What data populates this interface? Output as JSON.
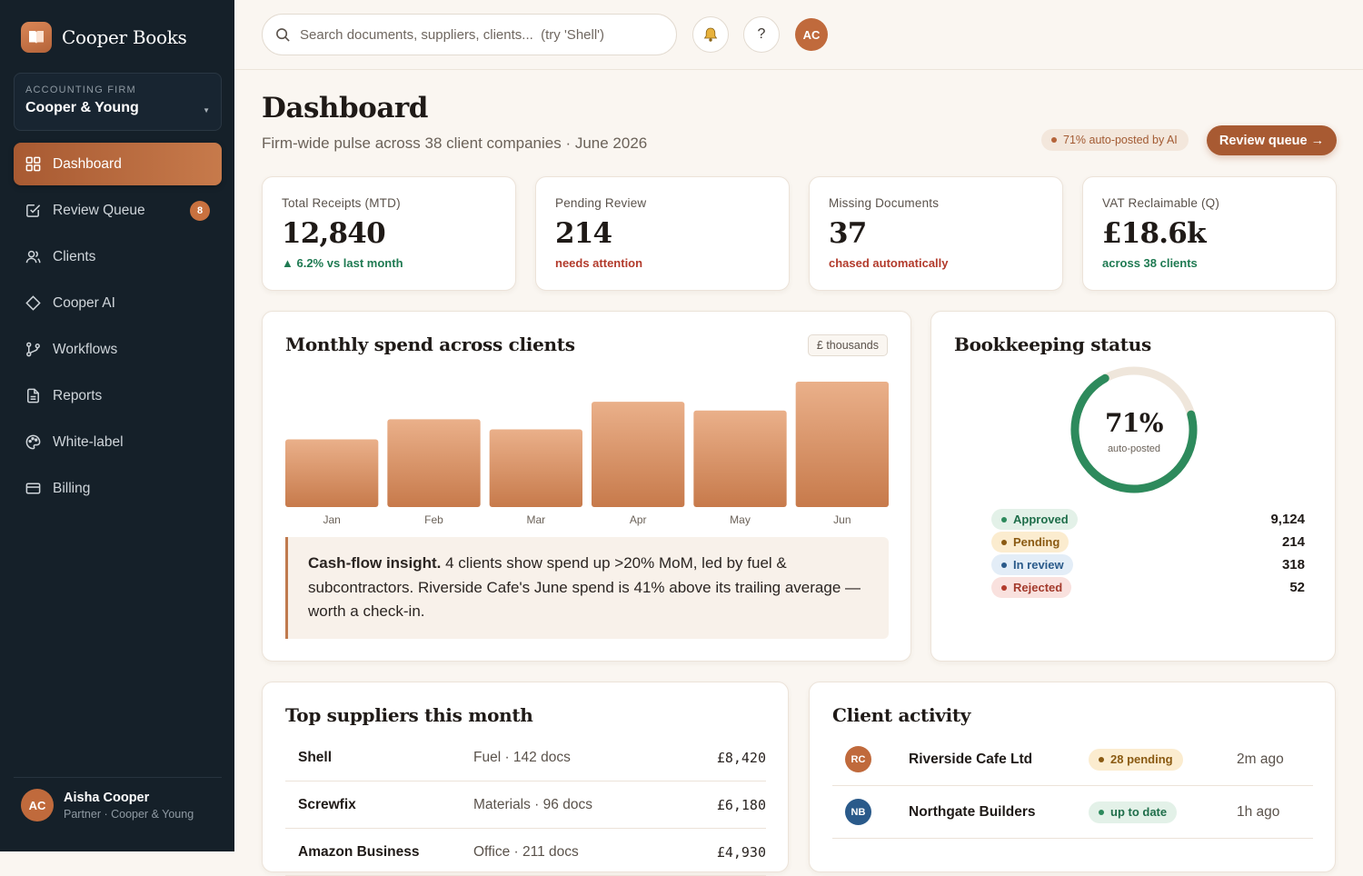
{
  "app": {
    "name": "Cooper Books"
  },
  "firm": {
    "caption": "ACCOUNTING FIRM",
    "name": "Cooper & Young"
  },
  "nav": {
    "items": [
      {
        "label": "Dashboard",
        "icon": "grid-icon",
        "active": true
      },
      {
        "label": "Review Queue",
        "icon": "check-square-icon",
        "badge": "8"
      },
      {
        "label": "Clients",
        "icon": "users-icon"
      },
      {
        "label": "Cooper AI",
        "icon": "diamond-icon"
      },
      {
        "label": "Workflows",
        "icon": "git-branch-icon"
      },
      {
        "label": "Reports",
        "icon": "document-icon"
      },
      {
        "label": "White-label",
        "icon": "palette-icon"
      },
      {
        "label": "Billing",
        "icon": "credit-card-icon"
      }
    ]
  },
  "user": {
    "initials": "AC",
    "name": "Aisha Cooper",
    "role": "Partner · Cooper & Young"
  },
  "search": {
    "placeholder": "Search documents, suppliers, clients...  (try 'Shell')"
  },
  "topbar": {
    "help_label": "?",
    "avatar_initials": "AC"
  },
  "header": {
    "title": "Dashboard",
    "subtitle": "Firm-wide pulse across 38 client companies · June 2026",
    "ai_pill": "71% auto-posted by AI",
    "review_button": "Review queue →"
  },
  "kpis": [
    {
      "label": "Total Receipts (MTD)",
      "value": "12,840",
      "note": "▲ 6.2% vs last month"
    },
    {
      "label": "Pending Review",
      "value": "214",
      "note": "needs attention"
    },
    {
      "label": "Missing Documents",
      "value": "37",
      "note": "chased automatically"
    },
    {
      "label": "VAT Reclaimable (Q)",
      "value": "£18.6k",
      "note": "across 38 clients"
    }
  ],
  "spend": {
    "title": "Monthly spend across clients",
    "unit": "£ thousands",
    "insight_bold": "Cash-flow insight.",
    "insight_text": " 4 clients show spend up >20% MoM, led by fuel & subcontractors. Riverside Cafe's June spend is 41% above its trailing average — worth a check-in."
  },
  "chart_data": {
    "type": "bar",
    "categories": [
      "Jan",
      "Feb",
      "Mar",
      "Apr",
      "May",
      "Jun"
    ],
    "values": [
      54,
      70,
      62,
      84,
      77,
      100
    ],
    "ylim": [
      0,
      100
    ],
    "grid": false,
    "color": "#c77a4b"
  },
  "bookkeeping": {
    "title": "Bookkeeping status",
    "percent": "71%",
    "percent_value": 0.71,
    "caption": "auto-posted",
    "statuses": [
      {
        "label": "Approved",
        "value": "9,124",
        "bg": "#e3f1e8",
        "fg": "#1f6e4a",
        "dot": "#2d8a5c"
      },
      {
        "label": "Pending",
        "value": "214",
        "bg": "#fbeccf",
        "fg": "#8a5a12",
        "dot": "#8a5a12"
      },
      {
        "label": "In review",
        "value": "318",
        "bg": "#e3edf7",
        "fg": "#2a5a8a",
        "dot": "#2a5a8a"
      },
      {
        "label": "Rejected",
        "value": "52",
        "bg": "#f9e1de",
        "fg": "#a33a2c",
        "dot": "#b23a2b"
      }
    ]
  },
  "suppliers": {
    "title": "Top suppliers this month",
    "rows": [
      {
        "name": "Shell",
        "meta": "Fuel · 142 docs",
        "amount": "£8,420"
      },
      {
        "name": "Screwfix",
        "meta": "Materials · 96 docs",
        "amount": "£6,180"
      },
      {
        "name": "Amazon Business",
        "meta": "Office · 211 docs",
        "amount": "£4,930"
      }
    ]
  },
  "activity": {
    "title": "Client activity",
    "rows": [
      {
        "initials": "RC",
        "name": "Riverside Cafe Ltd",
        "status": "28 pending",
        "time": "2m ago",
        "avatar_color": "#c06a3c",
        "pill_bg": "#fbeccf",
        "pill_fg": "#8a5a12"
      },
      {
        "initials": "NB",
        "name": "Northgate Builders",
        "status": "up to date",
        "time": "1h ago",
        "avatar_color": "#2a5a8a",
        "pill_bg": "#e3f1e8",
        "pill_fg": "#1f6e4a"
      }
    ]
  }
}
